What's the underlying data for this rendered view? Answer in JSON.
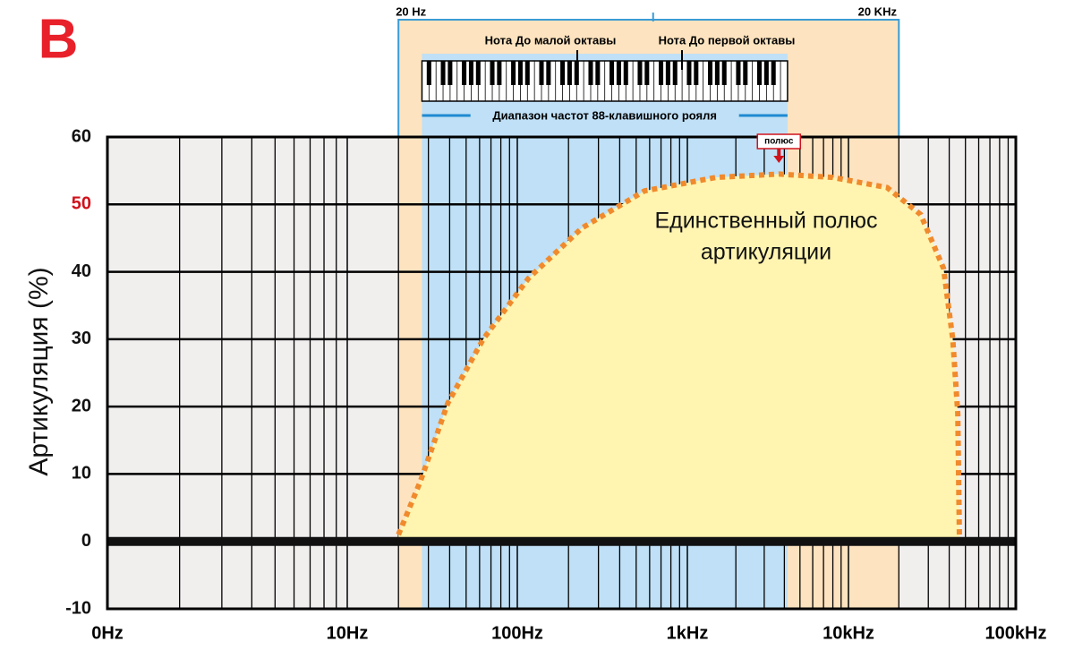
{
  "chart_data": {
    "type": "line",
    "panel_label": "B",
    "ylabel": "Артикуляция (%)",
    "x": [
      20,
      27,
      39,
      63,
      116,
      240,
      560,
      1500,
      3700,
      8000,
      17000,
      27000,
      37000,
      42000,
      45000,
      46000
    ],
    "values": [
      1,
      9,
      20.5,
      30,
      39,
      46.5,
      52,
      54,
      54.5,
      54,
      52.5,
      48.5,
      40.5,
      30,
      19,
      1
    ],
    "color": "#f08a2c",
    "fill_color": "#fff4b0",
    "xscale": "log",
    "xlim": [
      1,
      100000
    ],
    "xticks": [
      {
        "value": 1,
        "label": "0Hz"
      },
      {
        "value": 10,
        "label": "10Hz"
      },
      {
        "value": 100,
        "label": "100Hz"
      },
      {
        "value": 1000,
        "label": "1kHz"
      },
      {
        "value": 10000,
        "label": "10kHz"
      },
      {
        "value": 100000,
        "label": "100kHz"
      }
    ],
    "ylim": [
      -10,
      60
    ],
    "yticks": [
      -10,
      0,
      10,
      20,
      30,
      40,
      50,
      60
    ],
    "highlight_ytick": 50,
    "highlight_color": "#d0121b",
    "grid": true,
    "curve_label": [
      "Единственный полюс",
      "артикуляции"
    ],
    "pole_label": "полюс",
    "hearing_range": {
      "start": {
        "value": 20,
        "label": "20 Hz"
      },
      "end": {
        "value": 20000,
        "label": "20 KHz"
      },
      "color": "#fde3bf"
    },
    "piano": {
      "range": [
        27.5,
        4186
      ],
      "color": "#bfe0f6",
      "caption": "Диапазон частот 88-клавишного рояля",
      "notes": [
        "Нота До малой октавы",
        "Нота До первой октавы"
      ]
    }
  }
}
